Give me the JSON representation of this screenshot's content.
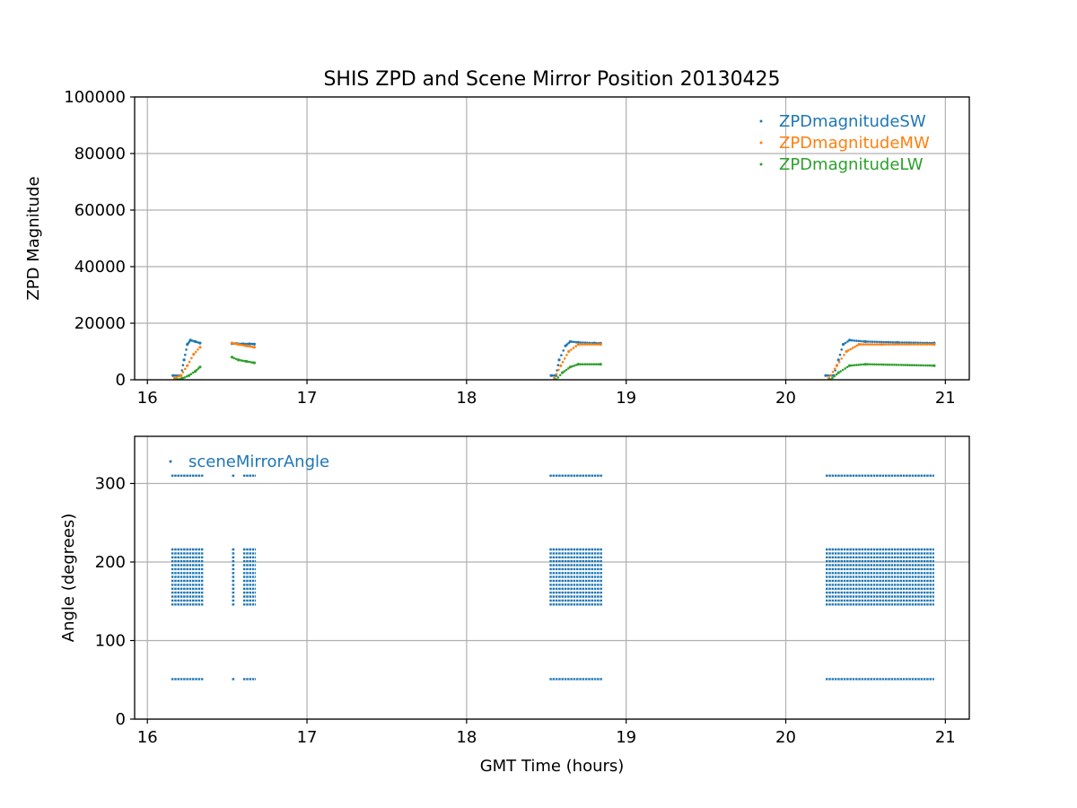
{
  "chart_data": [
    {
      "type": "scatter",
      "title": "SHIS ZPD and Scene Mirror Position 20130425",
      "xlabel": "",
      "ylabel": "ZPD Magnitude",
      "xlim": [
        15.92,
        21.15
      ],
      "ylim": [
        0,
        100000
      ],
      "xticks": [
        16,
        17,
        18,
        19,
        20,
        21
      ],
      "yticks": [
        0,
        20000,
        40000,
        60000,
        80000,
        100000
      ],
      "grid": true,
      "legend_position": "top-right",
      "series": [
        {
          "name": "ZPDmagnitudeSW",
          "color": "#1f77b4",
          "segments": [
            {
              "x": [
                16.16,
                16.21,
                16.23,
                16.25,
                16.27,
                16.3,
                16.33
              ],
              "y": [
                1500,
                1500,
                7000,
                12500,
                14000,
                13500,
                13000
              ]
            },
            {
              "x": [
                16.53,
                16.56,
                16.6,
                16.64,
                16.67
              ],
              "y": [
                12800,
                12800,
                12700,
                12700,
                12600
              ]
            },
            {
              "x": [
                18.53,
                18.56,
                18.58,
                18.62,
                18.65,
                18.7,
                18.8,
                18.84
              ],
              "y": [
                1500,
                1500,
                7000,
                12000,
                13500,
                13200,
                13000,
                12900
              ]
            },
            {
              "x": [
                20.25,
                20.3,
                20.33,
                20.36,
                20.4,
                20.5,
                20.7,
                20.93
              ],
              "y": [
                1500,
                1500,
                7000,
                12500,
                14000,
                13500,
                13200,
                13000
              ]
            }
          ]
        },
        {
          "name": "ZPDmagnitudeMW",
          "color": "#ff7f0e",
          "segments": [
            {
              "x": [
                16.17,
                16.21,
                16.25,
                16.29,
                16.33
              ],
              "y": [
                500,
                1500,
                5000,
                9000,
                11500
              ]
            },
            {
              "x": [
                16.53,
                16.57,
                16.62,
                16.67
              ],
              "y": [
                13000,
                12500,
                12000,
                11500
              ]
            },
            {
              "x": [
                18.55,
                18.59,
                18.64,
                18.7,
                18.84
              ],
              "y": [
                500,
                5000,
                10000,
                12500,
                12500
              ]
            },
            {
              "x": [
                20.27,
                20.32,
                20.38,
                20.46,
                20.6,
                20.93
              ],
              "y": [
                500,
                5000,
                10000,
                12500,
                12500,
                12500
              ]
            }
          ]
        },
        {
          "name": "ZPDmagnitudeLW",
          "color": "#2ca02c",
          "segments": [
            {
              "x": [
                16.18,
                16.22,
                16.26,
                16.3,
                16.33
              ],
              "y": [
                0,
                500,
                1500,
                3000,
                4500
              ]
            },
            {
              "x": [
                16.53,
                16.57,
                16.62,
                16.67
              ],
              "y": [
                8000,
                7000,
                6500,
                6000
              ]
            },
            {
              "x": [
                18.56,
                18.6,
                18.65,
                18.7,
                18.84
              ],
              "y": [
                0,
                2500,
                4500,
                5500,
                5500
              ]
            },
            {
              "x": [
                20.28,
                20.33,
                20.4,
                20.5,
                20.93
              ],
              "y": [
                0,
                2500,
                5000,
                5500,
                5000
              ]
            }
          ]
        }
      ]
    },
    {
      "type": "scatter",
      "title": "",
      "xlabel": "GMT Time (hours)",
      "ylabel": "Angle (degrees)",
      "xlim": [
        15.92,
        21.15
      ],
      "ylim": [
        0,
        360
      ],
      "xticks": [
        16,
        17,
        18,
        19,
        20,
        21
      ],
      "yticks": [
        0,
        100,
        200,
        300
      ],
      "grid": true,
      "legend_position": "top-left",
      "series": [
        {
          "name": "sceneMirrorAngle",
          "color": "#1f77b4",
          "angles": [
            310,
            216,
            211,
            206,
            201,
            196,
            191,
            186,
            181,
            176,
            171,
            166,
            161,
            156,
            151,
            146,
            51
          ],
          "x_ranges": [
            [
              16.15,
              16.35
            ],
            [
              16.53,
              16.55
            ],
            [
              16.6,
              16.68
            ],
            [
              18.52,
              18.85
            ],
            [
              20.25,
              20.93
            ]
          ]
        }
      ]
    }
  ]
}
